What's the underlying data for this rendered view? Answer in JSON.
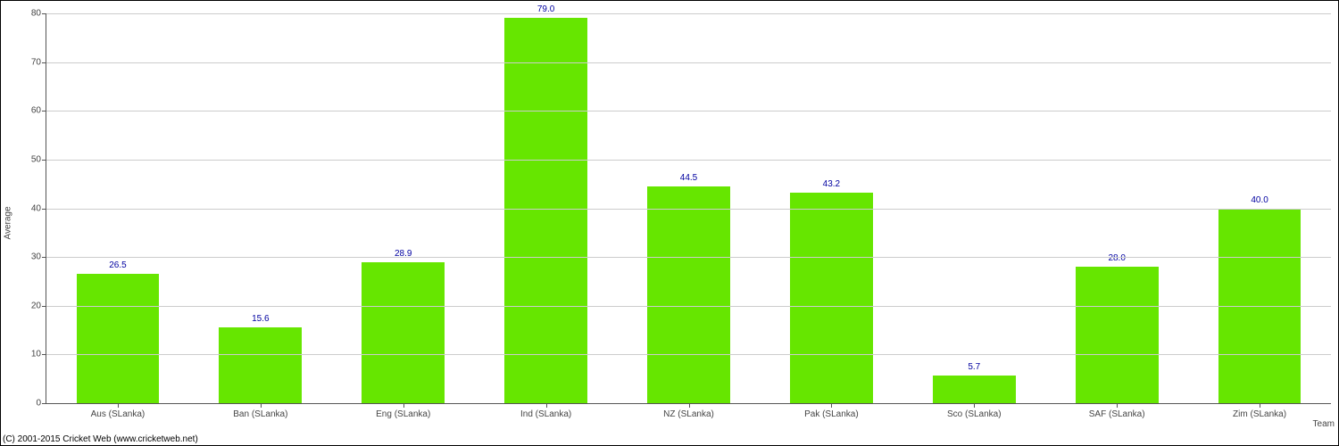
{
  "chart": {
    "type": "bar",
    "ylabel": "Average",
    "xlabel": "Team",
    "ylim": [
      0,
      80
    ],
    "ytick_step": 10,
    "yticks": [
      0,
      10,
      20,
      30,
      40,
      50,
      60,
      70,
      80
    ],
    "categories": [
      "Aus (SLanka)",
      "Ban (SLanka)",
      "Eng (SLanka)",
      "Ind (SLanka)",
      "NZ (SLanka)",
      "Pak (SLanka)",
      "Sco (SLanka)",
      "SAF (SLanka)",
      "Zim (SLanka)"
    ],
    "values": [
      26.5,
      15.6,
      28.9,
      79.0,
      44.5,
      43.2,
      5.7,
      28.0,
      40.0
    ],
    "value_labels": [
      "26.5",
      "15.6",
      "28.9",
      "79.0",
      "44.5",
      "43.2",
      "5.7",
      "28.0",
      "40.0"
    ],
    "bar_color": "#66e600",
    "value_label_color": "#0000a0",
    "value_label_fontsize": 10,
    "tick_label_color": "#444444",
    "tick_fontsize": 10,
    "grid_color": "#cccccc",
    "axis_color": "#555555",
    "background_color": "#ffffff",
    "bar_width_ratio": 0.58,
    "label_fontsize": 10
  },
  "footer": {
    "copyright": "(C) 2001-2015 Cricket Web (www.cricketweb.net)"
  }
}
